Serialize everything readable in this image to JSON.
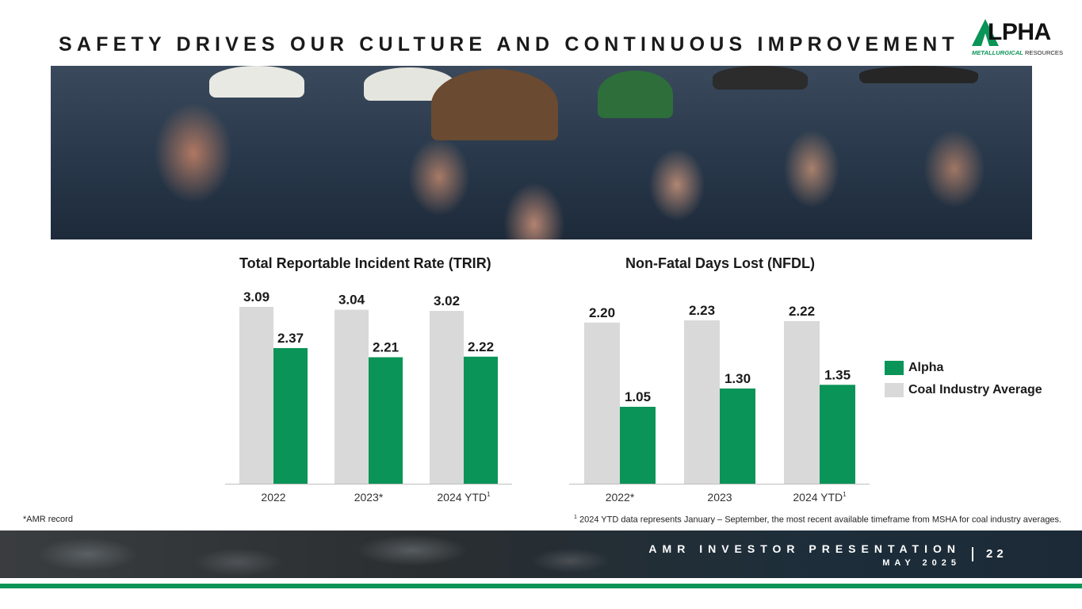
{
  "header": {
    "title": "SAFETY DRIVES OUR CULTURE AND CONTINUOUS IMPROVEMENT",
    "logo_text": "LPHA",
    "logo_subtitle_bold": "METALLURGICAL",
    "logo_subtitle_rest": " RESOURCES"
  },
  "colors": {
    "alpha": "#0a9457",
    "industry": "#d9d9d9",
    "axis": "#bfbfbf"
  },
  "chart_data": [
    {
      "type": "bar",
      "title": "Total Reportable Incident Rate (TRIR)",
      "categories": [
        "2022",
        "2023*",
        "2024 YTD"
      ],
      "category_superscripts": [
        "",
        "",
        "1"
      ],
      "series": [
        {
          "name": "Coal Industry Average",
          "values": [
            3.09,
            3.04,
            3.02
          ]
        },
        {
          "name": "Alpha",
          "values": [
            2.37,
            2.21,
            2.22
          ]
        }
      ],
      "value_labels": {
        "Coal Industry Average": [
          "3.09",
          "3.04",
          "3.02"
        ],
        "Alpha": [
          "2.37",
          "2.21",
          "2.22"
        ]
      },
      "ylim": [
        0,
        3.09
      ],
      "grid": false
    },
    {
      "type": "bar",
      "title": "Non-Fatal Days Lost (NFDL)",
      "categories": [
        "2022*",
        "2023",
        "2024 YTD"
      ],
      "category_superscripts": [
        "",
        "",
        "1"
      ],
      "series": [
        {
          "name": "Coal Industry Average",
          "values": [
            2.2,
            2.23,
            2.22
          ]
        },
        {
          "name": "Alpha",
          "values": [
            1.05,
            1.3,
            1.35
          ]
        }
      ],
      "value_labels": {
        "Coal Industry Average": [
          "2.20",
          "2.23",
          "2.22"
        ],
        "Alpha": [
          "1.05",
          "1.30",
          "1.35"
        ]
      },
      "ylim": [
        0,
        2.23
      ],
      "grid": false
    }
  ],
  "legend": {
    "placement": "right",
    "items": [
      {
        "label": "Alpha",
        "color": "#0a9457"
      },
      {
        "label": "Coal Industry Average",
        "color": "#d9d9d9"
      }
    ]
  },
  "footnotes": {
    "left": "*AMR record",
    "right_sup": "1",
    "right": " 2024 YTD data represents January – September, the most recent available timeframe from MSHA for coal industry averages."
  },
  "footer": {
    "presentation": "AMR INVESTOR PRESENTATION",
    "date": "MAY 2025",
    "page": "22"
  }
}
